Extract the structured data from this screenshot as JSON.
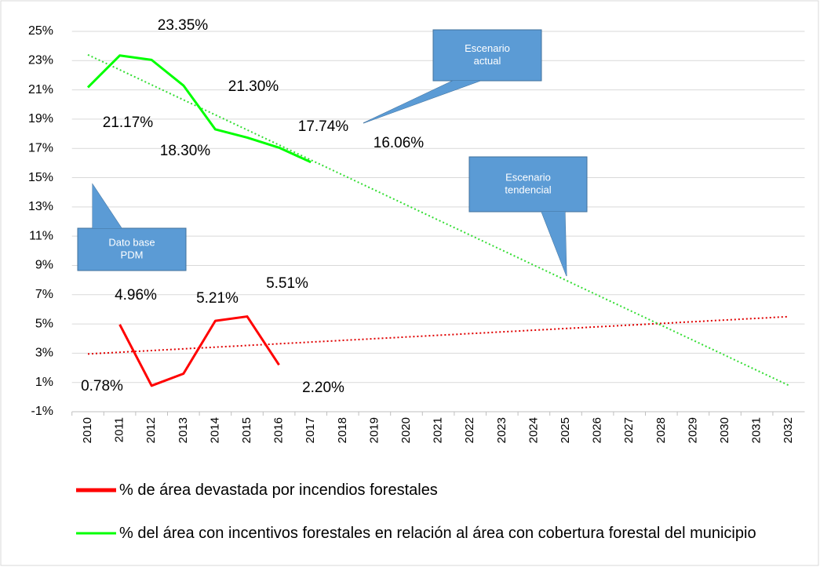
{
  "chart_data": {
    "type": "line",
    "categories": [
      "2010",
      "2011",
      "2012",
      "2013",
      "2014",
      "2015",
      "2016",
      "2017",
      "2018",
      "2019",
      "2020",
      "2021",
      "2022",
      "2023",
      "2024",
      "2025",
      "2026",
      "2027",
      "2028",
      "2029",
      "2030",
      "2031",
      "2032"
    ],
    "series": [
      {
        "name": "% de área devastada por incendios forestales",
        "color": "#ff0000",
        "values": [
          null,
          4.96,
          0.78,
          1.6,
          5.21,
          5.51,
          2.2,
          null,
          null,
          null,
          null,
          null,
          null,
          null,
          null,
          null,
          null,
          null,
          null,
          null,
          null,
          null,
          null
        ],
        "value_labels": [
          null,
          "4.96%",
          "0.78%",
          null,
          "5.21%",
          "5.51%",
          "2.20%",
          null,
          null,
          null,
          null,
          null,
          null,
          null,
          null,
          null,
          null,
          null,
          null,
          null,
          null,
          null,
          null
        ]
      },
      {
        "name": "% del área con incentivos forestales en relación al área con cobertura forestal del municipio",
        "color": "#00ff00",
        "values": [
          21.17,
          23.35,
          23.05,
          21.3,
          18.3,
          17.74,
          17.05,
          16.06,
          null,
          null,
          null,
          null,
          null,
          null,
          null,
          null,
          null,
          null,
          null,
          null,
          null,
          null,
          null
        ],
        "value_labels": [
          "21.17%",
          "23.35%",
          null,
          "21.30%",
          "18.30%",
          "17.74%",
          null,
          "16.06%",
          null,
          null,
          null,
          null,
          null,
          null,
          null,
          null,
          null,
          null,
          null,
          null,
          null,
          null,
          null
        ]
      }
    ],
    "trendlines": [
      {
        "color": "#e00000",
        "values": [
          2.95,
          5.5
        ]
      },
      {
        "color": "#33dd33",
        "values": [
          23.4,
          0.8
        ]
      }
    ],
    "ylim": [
      -1,
      25
    ],
    "yticks": [
      {
        "value": -1,
        "label": "-1%"
      },
      {
        "value": 1,
        "label": "1%"
      },
      {
        "value": 3,
        "label": "3%"
      },
      {
        "value": 5,
        "label": "5%"
      },
      {
        "value": 7,
        "label": "7%"
      },
      {
        "value": 9,
        "label": "9%"
      },
      {
        "value": 11,
        "label": "11%"
      },
      {
        "value": 13,
        "label": "13%"
      },
      {
        "value": 15,
        "label": "15%"
      },
      {
        "value": 17,
        "label": "17%"
      },
      {
        "value": 19,
        "label": "19%"
      },
      {
        "value": 21,
        "label": "21%"
      },
      {
        "value": 23,
        "label": "23%"
      },
      {
        "value": 25,
        "label": "25%"
      }
    ],
    "grid": true,
    "annotations": [
      {
        "lines": [
          "Escenario",
          "actual"
        ]
      },
      {
        "lines": [
          "Escenario",
          "tendencial"
        ]
      },
      {
        "lines": [
          "Dato base",
          "PDM"
        ]
      }
    ]
  }
}
